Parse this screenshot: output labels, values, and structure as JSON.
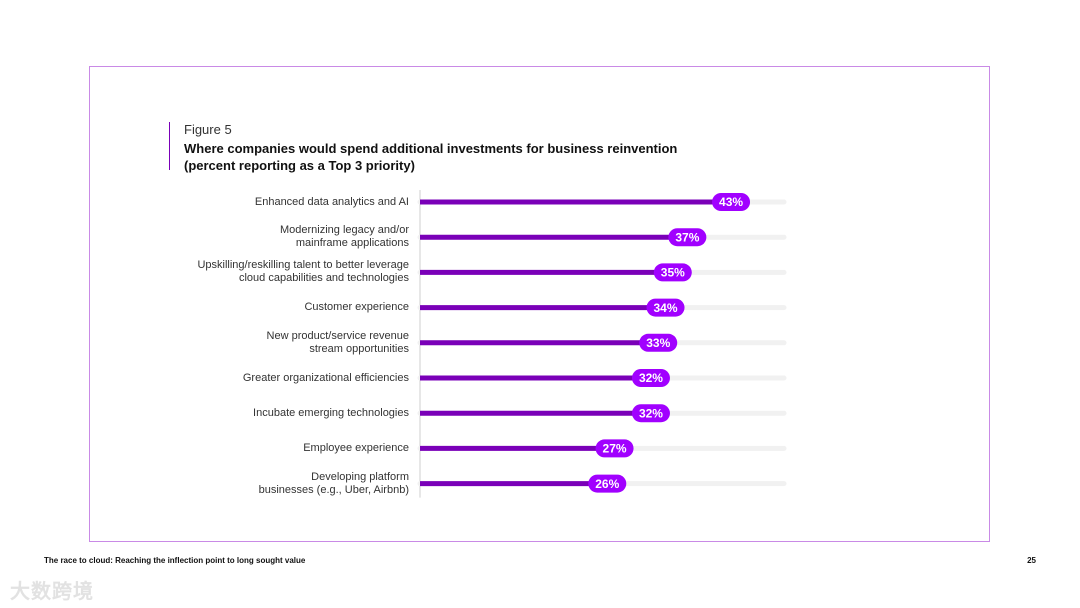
{
  "figure_label": "Figure 5",
  "figure_title_line1": "Where companies would spend additional investments for business reinvention",
  "figure_title_line2": "(percent reporting as a Top 3 priority)",
  "footer_text": "The race to cloud:  Reaching the inflection point to long sought value",
  "page_number": "25",
  "watermark": "大数跨境",
  "colors": {
    "accent": "#7a00b8",
    "pill": "#a100ff",
    "track": "#f1f1f1",
    "frame": "#c98ae6"
  },
  "chart_data": {
    "type": "bar",
    "orientation": "horizontal",
    "title": "Where companies would spend additional investments for business reinvention (percent reporting as a Top 3 priority)",
    "xlim": [
      0,
      50
    ],
    "unit": "%",
    "categories": [
      [
        "Enhanced data analytics and AI"
      ],
      [
        "Modernizing legacy and/or",
        "mainframe applications"
      ],
      [
        "Upskilling/reskilling talent to better leverage",
        "cloud capabilities and technologies"
      ],
      [
        "Customer experience"
      ],
      [
        "New product/service revenue",
        "stream opportunities"
      ],
      [
        "Greater organizational efficiencies"
      ],
      [
        "Incubate emerging technologies"
      ],
      [
        "Employee experience"
      ],
      [
        "Developing platform",
        "businesses (e.g., Uber, Airbnb)"
      ]
    ],
    "values": [
      43,
      37,
      35,
      34,
      33,
      32,
      32,
      27,
      26
    ],
    "labels": [
      "43%",
      "37%",
      "35%",
      "34%",
      "33%",
      "32%",
      "32%",
      "27%",
      "26%"
    ]
  }
}
